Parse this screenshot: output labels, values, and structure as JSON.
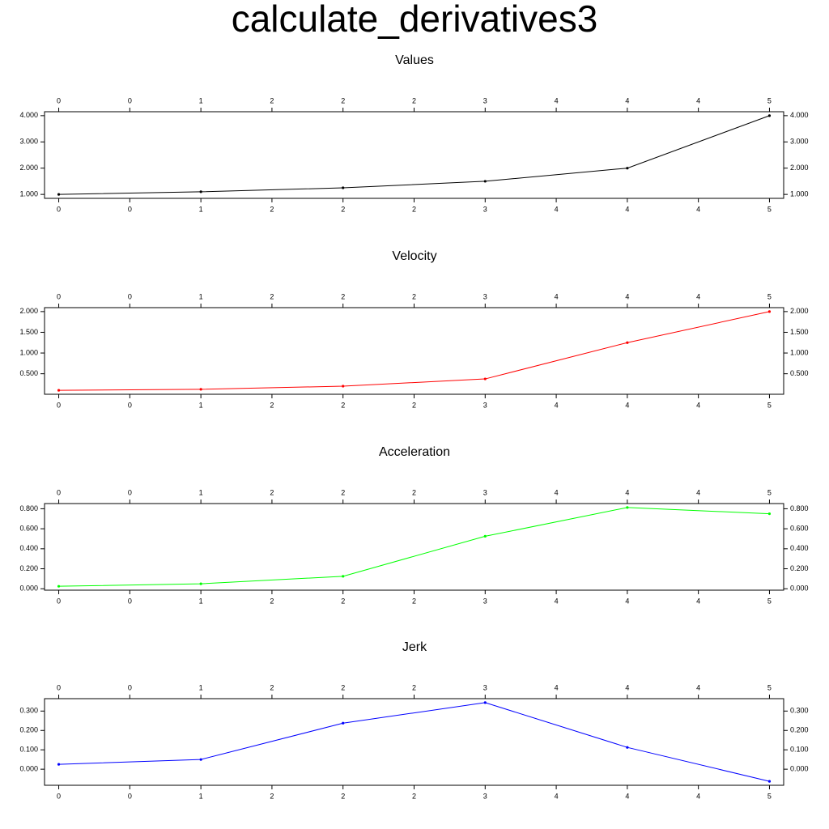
{
  "title": "calculate_derivatives3",
  "chart_data": [
    {
      "type": "line",
      "title": "Values",
      "x": [
        0,
        1,
        2,
        3,
        4,
        5
      ],
      "values": [
        1,
        1.1,
        1.25,
        1.5,
        2,
        4
      ],
      "color": "#000000",
      "xlim": [
        -0.1,
        5.1
      ],
      "ylim": [
        0.85,
        4.15
      ],
      "xticks": [
        {
          "value": 0,
          "label": "0"
        },
        {
          "value": 0.5,
          "label": "0"
        },
        {
          "value": 1,
          "label": "1"
        },
        {
          "value": 1.5,
          "label": "2"
        },
        {
          "value": 2,
          "label": "2"
        },
        {
          "value": 2.5,
          "label": "2"
        },
        {
          "value": 3,
          "label": "3"
        },
        {
          "value": 3.5,
          "label": "4"
        },
        {
          "value": 4,
          "label": "4"
        },
        {
          "value": 4.5,
          "label": "4"
        },
        {
          "value": 5,
          "label": "5"
        }
      ],
      "yticks": [
        {
          "value": 1,
          "label": "1.000"
        },
        {
          "value": 2,
          "label": "2.000"
        },
        {
          "value": 3,
          "label": "3.000"
        },
        {
          "value": 4,
          "label": "4.000"
        }
      ]
    },
    {
      "type": "line",
      "title": "Velocity",
      "x": [
        0,
        1,
        2,
        3,
        4,
        5
      ],
      "values": [
        0.1,
        0.125,
        0.2,
        0.375,
        1.25,
        2.0
      ],
      "color": "#ff0000",
      "xlim": [
        -0.1,
        5.1
      ],
      "ylim": [
        0.005,
        2.095
      ],
      "xticks": [
        {
          "value": 0,
          "label": "0"
        },
        {
          "value": 0.5,
          "label": "0"
        },
        {
          "value": 1,
          "label": "1"
        },
        {
          "value": 1.5,
          "label": "2"
        },
        {
          "value": 2,
          "label": "2"
        },
        {
          "value": 2.5,
          "label": "2"
        },
        {
          "value": 3,
          "label": "3"
        },
        {
          "value": 3.5,
          "label": "4"
        },
        {
          "value": 4,
          "label": "4"
        },
        {
          "value": 4.5,
          "label": "4"
        },
        {
          "value": 5,
          "label": "5"
        }
      ],
      "yticks": [
        {
          "value": 0.5,
          "label": "0.500"
        },
        {
          "value": 1,
          "label": "1.000"
        },
        {
          "value": 1.5,
          "label": "1.500"
        },
        {
          "value": 2,
          "label": "2.000"
        }
      ]
    },
    {
      "type": "line",
      "title": "Acceleration",
      "x": [
        0,
        1,
        2,
        3,
        4,
        5
      ],
      "values": [
        0.025,
        0.05,
        0.125,
        0.525,
        0.8125,
        0.75
      ],
      "color": "#00ff00",
      "xlim": [
        -0.1,
        5.1
      ],
      "ylim": [
        -0.014,
        0.852
      ],
      "xticks": [
        {
          "value": 0,
          "label": "0"
        },
        {
          "value": 0.5,
          "label": "0"
        },
        {
          "value": 1,
          "label": "1"
        },
        {
          "value": 1.5,
          "label": "2"
        },
        {
          "value": 2,
          "label": "2"
        },
        {
          "value": 2.5,
          "label": "2"
        },
        {
          "value": 3,
          "label": "3"
        },
        {
          "value": 3.5,
          "label": "4"
        },
        {
          "value": 4,
          "label": "4"
        },
        {
          "value": 4.5,
          "label": "4"
        },
        {
          "value": 5,
          "label": "5"
        }
      ],
      "yticks": [
        {
          "value": 0,
          "label": "0.000"
        },
        {
          "value": 0.2,
          "label": "0.200"
        },
        {
          "value": 0.4,
          "label": "0.400"
        },
        {
          "value": 0.6,
          "label": "0.600"
        },
        {
          "value": 0.8,
          "label": "0.800"
        }
      ]
    },
    {
      "type": "line",
      "title": "Jerk",
      "x": [
        0,
        1,
        2,
        3,
        4,
        5
      ],
      "values": [
        0.025,
        0.05,
        0.2375,
        0.34375,
        0.1125,
        -0.0625
      ],
      "color": "#0000ff",
      "xlim": [
        -0.1,
        5.1
      ],
      "ylim": [
        -0.083,
        0.364
      ],
      "xticks": [
        {
          "value": 0,
          "label": "0"
        },
        {
          "value": 0.5,
          "label": "0"
        },
        {
          "value": 1,
          "label": "1"
        },
        {
          "value": 1.5,
          "label": "2"
        },
        {
          "value": 2,
          "label": "2"
        },
        {
          "value": 2.5,
          "label": "2"
        },
        {
          "value": 3,
          "label": "3"
        },
        {
          "value": 3.5,
          "label": "4"
        },
        {
          "value": 4,
          "label": "4"
        },
        {
          "value": 4.5,
          "label": "4"
        },
        {
          "value": 5,
          "label": "5"
        }
      ],
      "yticks": [
        {
          "value": 0,
          "label": "0.000"
        },
        {
          "value": 0.1,
          "label": "0.100"
        },
        {
          "value": 0.2,
          "label": "0.200"
        },
        {
          "value": 0.3,
          "label": "0.300"
        }
      ]
    }
  ]
}
